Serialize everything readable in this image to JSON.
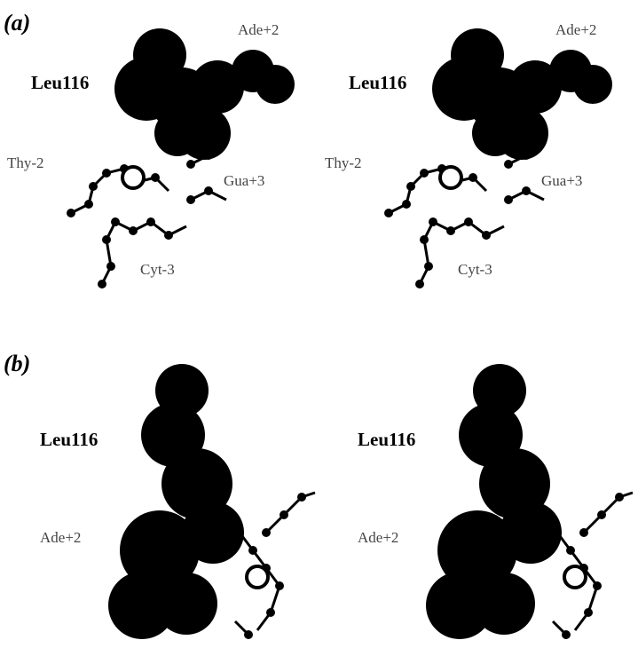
{
  "panels": [
    {
      "label": "(a)",
      "views": [
        {
          "labels": [
            "Leu116",
            "Ade+2",
            "Thy-2",
            "Gua+3",
            "Cyt-3"
          ]
        },
        {
          "labels": [
            "Leu116",
            "Ade+2",
            "Thy-2",
            "Gua+3",
            "Cyt-3"
          ]
        }
      ]
    },
    {
      "label": "(b)",
      "views": [
        {
          "labels": [
            "Leu116",
            "Ade+2"
          ]
        },
        {
          "labels": [
            "Leu116",
            "Ade+2"
          ]
        }
      ]
    }
  ]
}
